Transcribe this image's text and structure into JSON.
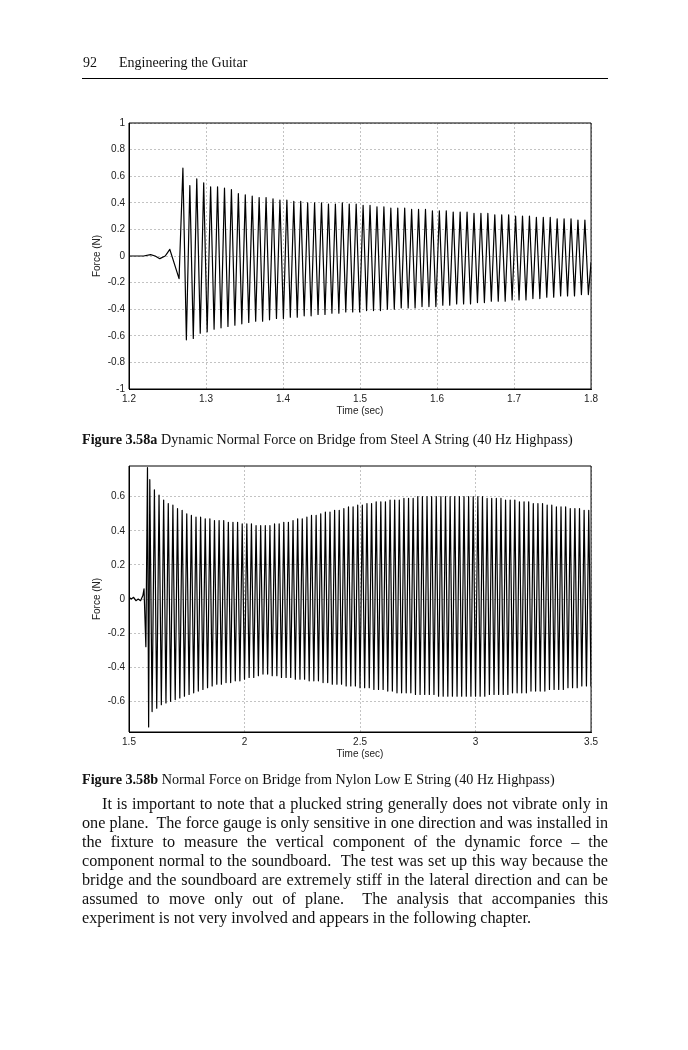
{
  "chart_data": [
    {
      "type": "line",
      "title": "Figure 3.58a",
      "subtitle": "Dynamic Normal Force on Bridge from Steel A String (40 Hz Highpass)",
      "xlabel": "Time (sec)",
      "ylabel": "Force (N)",
      "annotations": [
        "92",
        "Engineering the Guitar"
      ],
      "color": "#000000",
      "grid": true,
      "xlim": [
        1.2,
        1.8
      ],
      "ylim": [
        -1,
        1
      ],
      "xticks": [
        1.2,
        1.3,
        1.4,
        1.5,
        1.6,
        1.7,
        1.8
      ],
      "yticks": [
        -1,
        -0.8,
        -0.6,
        -0.4,
        -0.2,
        0,
        0.2,
        0.4,
        0.6,
        0.8,
        1
      ],
      "x": [
        1.2,
        1.21,
        1.219,
        1.228,
        1.234,
        1.24,
        1.247,
        1.253,
        1.265,
        1.27,
        1.2745,
        1.279,
        1.2835,
        1.288,
        1.2925,
        1.297,
        1.3015,
        1.306,
        1.3105,
        1.315,
        1.3195,
        1.324,
        1.3285,
        1.333,
        1.3375,
        1.342,
        1.3465,
        1.351,
        1.3555,
        1.36,
        1.3645,
        1.369,
        1.3735,
        1.378,
        1.3825,
        1.387,
        1.3915,
        1.396,
        1.4005,
        1.405,
        1.4095,
        1.414,
        1.4185,
        1.423,
        1.4275,
        1.432,
        1.4365,
        1.441,
        1.4455,
        1.45,
        1.4545,
        1.459,
        1.4635,
        1.468,
        1.4725,
        1.477,
        1.4815,
        1.486,
        1.4905,
        1.495,
        1.4995,
        1.504,
        1.5085,
        1.513,
        1.5175,
        1.522,
        1.5265,
        1.531,
        1.5355,
        1.54,
        1.5445,
        1.549,
        1.5535,
        1.558,
        1.5625,
        1.567,
        1.5715,
        1.576,
        1.5805,
        1.585,
        1.5895,
        1.594,
        1.5985,
        1.603,
        1.6075,
        1.612,
        1.6165,
        1.621,
        1.6255,
        1.63,
        1.6345,
        1.639,
        1.6435,
        1.648,
        1.6525,
        1.657,
        1.6615,
        1.666,
        1.6705,
        1.675,
        1.6795,
        1.684,
        1.6885,
        1.693,
        1.6975,
        1.702,
        1.7065,
        1.711,
        1.7155,
        1.72,
        1.7245,
        1.729,
        1.7335,
        1.738,
        1.7425,
        1.747,
        1.7515,
        1.756,
        1.7605,
        1.765,
        1.7695,
        1.774,
        1.7785,
        1.783,
        1.7875,
        1.792,
        1.7965,
        1.8
      ],
      "values": [
        0,
        0,
        0,
        0.01,
        0,
        -0.02,
        0,
        0.05,
        -0.17,
        0.66,
        -0.63,
        0.53,
        -0.62,
        0.58,
        -0.58,
        0.55,
        -0.57,
        0.52,
        -0.55,
        0.52,
        -0.54,
        0.51,
        -0.53,
        0.5,
        -0.52,
        0.47,
        -0.51,
        0.46,
        -0.5,
        0.45,
        -0.49,
        0.44,
        -0.49,
        0.44,
        -0.48,
        0.43,
        -0.47,
        0.42,
        -0.47,
        0.42,
        -0.46,
        0.41,
        -0.46,
        0.41,
        -0.45,
        0.4,
        -0.45,
        0.4,
        -0.44,
        0.4,
        -0.44,
        0.39,
        -0.43,
        0.39,
        -0.43,
        0.4,
        -0.42,
        0.39,
        -0.42,
        0.39,
        -0.42,
        0.38,
        -0.41,
        0.38,
        -0.41,
        0.37,
        -0.41,
        0.37,
        -0.4,
        0.36,
        -0.4,
        0.36,
        -0.39,
        0.36,
        -0.39,
        0.35,
        -0.39,
        0.35,
        -0.38,
        0.35,
        -0.38,
        0.34,
        -0.38,
        0.34,
        -0.37,
        0.34,
        -0.37,
        0.33,
        -0.36,
        0.33,
        -0.36,
        0.33,
        -0.36,
        0.32,
        -0.35,
        0.32,
        -0.35,
        0.32,
        -0.34,
        0.31,
        -0.34,
        0.31,
        -0.34,
        0.31,
        -0.33,
        0.3,
        -0.33,
        0.3,
        -0.33,
        0.3,
        -0.32,
        0.29,
        -0.32,
        0.29,
        -0.31,
        0.29,
        -0.31,
        0.28,
        -0.3,
        0.28,
        -0.3,
        0.28,
        -0.3,
        0.27,
        -0.29,
        0.27,
        -0.29,
        -0.05
      ]
    },
    {
      "type": "line",
      "title": "Figure 3.58b",
      "subtitle": "Normal Force on Bridge from Nylon Low E String (40 Hz Highpass)",
      "xlabel": "Time (sec)",
      "ylabel": "Force (N)",
      "annotations": [
        "It is important to note that a plucked string generally does not vibrate only in one plane.  The force gauge is only sensitive in one direction and was installed in the fixture to measure the vertical component of the dynamic force – the component normal to the soundboard.  The test was set up this way because the bridge and the soundboard are extremely stiff in the lateral direction and can be assumed to move only out of plane.  The analysis that accompanies this experiment is not very involved and appears in the following chapter."
      ],
      "color": "#000000",
      "grid": true,
      "xlim": [
        1.5,
        3.5
      ],
      "ylim": [
        -0.78,
        0.78
      ],
      "xticks": [
        1.5,
        2,
        2.5,
        3,
        3.5
      ],
      "yticks": [
        -0.6,
        -0.4,
        -0.2,
        0,
        0.2,
        0.4,
        0.6
      ],
      "x": [
        1.5,
        1.51,
        1.52,
        1.53,
        1.54,
        1.55,
        1.56,
        1.565,
        1.573,
        1.58,
        1.585,
        1.59,
        1.6,
        1.61,
        1.62,
        1.63,
        1.64,
        1.65,
        1.66,
        1.67,
        1.68,
        1.69,
        1.7,
        1.71,
        1.72,
        1.73,
        1.74,
        1.75,
        1.76,
        1.77,
        1.78,
        1.79,
        1.8,
        1.81,
        1.82,
        1.83,
        1.84,
        1.85,
        1.86,
        1.87,
        1.88,
        1.89,
        1.9,
        1.91,
        1.92,
        1.93,
        1.94,
        1.95,
        1.96,
        1.97,
        1.98,
        1.99,
        2,
        2.01,
        2.02,
        2.03,
        2.04,
        2.05,
        2.06,
        2.07,
        2.08,
        2.09,
        2.1,
        2.11,
        2.12,
        2.13,
        2.14,
        2.15,
        2.16,
        2.17,
        2.18,
        2.19,
        2.2,
        2.21,
        2.22,
        2.23,
        2.24,
        2.25,
        2.26,
        2.27,
        2.28,
        2.29,
        2.3,
        2.31,
        2.32,
        2.33,
        2.34,
        2.35,
        2.36,
        2.37,
        2.38,
        2.39,
        2.4,
        2.41,
        2.42,
        2.43,
        2.44,
        2.45,
        2.46,
        2.47,
        2.48,
        2.49,
        2.5,
        2.51,
        2.52,
        2.53,
        2.54,
        2.55,
        2.56,
        2.57,
        2.58,
        2.59,
        2.6,
        2.61,
        2.62,
        2.63,
        2.64,
        2.65,
        2.66,
        2.67,
        2.68,
        2.69,
        2.7,
        2.71,
        2.72,
        2.73,
        2.74,
        2.75,
        2.76,
        2.77,
        2.78,
        2.79,
        2.8,
        2.81,
        2.82,
        2.83,
        2.84,
        2.85,
        2.86,
        2.87,
        2.88,
        2.89,
        2.9,
        2.91,
        2.92,
        2.93,
        2.94,
        2.95,
        2.96,
        2.97,
        2.98,
        2.99,
        3,
        3.01,
        3.02,
        3.03,
        3.04,
        3.05,
        3.06,
        3.07,
        3.08,
        3.09,
        3.1,
        3.11,
        3.12,
        3.13,
        3.14,
        3.15,
        3.16,
        3.17,
        3.18,
        3.19,
        3.2,
        3.21,
        3.22,
        3.23,
        3.24,
        3.25,
        3.26,
        3.27,
        3.28,
        3.29,
        3.3,
        3.31,
        3.32,
        3.33,
        3.34,
        3.35,
        3.36,
        3.37,
        3.38,
        3.39,
        3.4,
        3.41,
        3.42,
        3.43,
        3.44,
        3.45,
        3.46,
        3.47,
        3.48,
        3.49,
        3.5
      ],
      "values": [
        0.01,
        0,
        0.01,
        -0.01,
        0,
        -0.01,
        0.02,
        0.06,
        -0.28,
        0.77,
        -0.75,
        0.7,
        -0.66,
        0.64,
        -0.64,
        0.61,
        -0.62,
        0.58,
        -0.61,
        0.56,
        -0.6,
        0.55,
        -0.59,
        0.53,
        -0.58,
        0.52,
        -0.57,
        0.5,
        -0.56,
        0.49,
        -0.55,
        0.48,
        -0.54,
        0.48,
        -0.53,
        0.47,
        -0.52,
        0.47,
        -0.51,
        0.46,
        -0.5,
        0.46,
        -0.5,
        0.46,
        -0.49,
        0.45,
        -0.49,
        0.45,
        -0.48,
        0.45,
        -0.48,
        0.44,
        -0.47,
        0.44,
        -0.46,
        0.44,
        -0.46,
        0.43,
        -0.45,
        0.43,
        -0.44,
        0.43,
        -0.44,
        0.43,
        -0.45,
        0.44,
        -0.45,
        0.44,
        -0.46,
        0.45,
        -0.46,
        0.45,
        -0.46,
        0.46,
        -0.47,
        0.47,
        -0.47,
        0.47,
        -0.47,
        0.48,
        -0.48,
        0.49,
        -0.48,
        0.49,
        -0.48,
        0.5,
        -0.49,
        0.51,
        -0.49,
        0.51,
        -0.5,
        0.52,
        -0.5,
        0.52,
        -0.5,
        0.53,
        -0.51,
        0.54,
        -0.51,
        0.54,
        -0.51,
        0.55,
        -0.52,
        0.55,
        -0.52,
        0.56,
        -0.52,
        0.56,
        -0.53,
        0.57,
        -0.53,
        0.57,
        -0.53,
        0.57,
        -0.54,
        0.58,
        -0.54,
        0.58,
        -0.55,
        0.58,
        -0.55,
        0.59,
        -0.55,
        0.59,
        -0.55,
        0.59,
        -0.56,
        0.6,
        -0.56,
        0.6,
        -0.56,
        0.6,
        -0.56,
        0.6,
        -0.56,
        0.6,
        -0.57,
        0.6,
        -0.57,
        0.6,
        -0.57,
        0.6,
        -0.57,
        0.6,
        -0.57,
        0.6,
        -0.57,
        0.6,
        -0.57,
        0.6,
        -0.57,
        0.6,
        -0.57,
        0.6,
        -0.57,
        0.6,
        -0.57,
        0.59,
        -0.56,
        0.59,
        -0.56,
        0.59,
        -0.56,
        0.59,
        -0.56,
        0.58,
        -0.56,
        0.58,
        -0.55,
        0.58,
        -0.55,
        0.57,
        -0.55,
        0.57,
        -0.55,
        0.57,
        -0.54,
        0.56,
        -0.54,
        0.56,
        -0.54,
        0.56,
        -0.54,
        0.55,
        -0.53,
        0.55,
        -0.53,
        0.54,
        -0.53,
        0.54,
        -0.53,
        0.54,
        -0.52,
        0.53,
        -0.52,
        0.53,
        -0.52,
        0.53,
        -0.51,
        0.52,
        -0.51,
        0.52,
        -0.51
      ]
    }
  ]
}
